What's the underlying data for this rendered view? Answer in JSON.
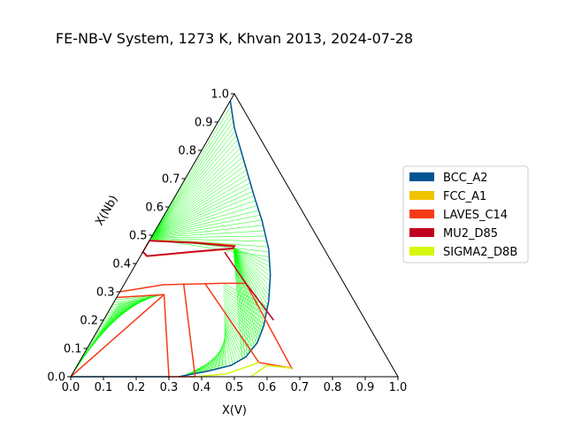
{
  "chart_data": {
    "type": "ternary-phase-diagram",
    "title": "FE-NB-V System, 1273 K, Khvan 2013, 2024-07-28",
    "xlabel": "X(V)",
    "ylabel": "X(Nb)",
    "xlim": [
      0,
      1
    ],
    "ylim": [
      0,
      1
    ],
    "x_ticks": [
      "0.0",
      "0.1",
      "0.2",
      "0.3",
      "0.4",
      "0.5",
      "0.6",
      "0.7",
      "0.8",
      "0.9",
      "1.0"
    ],
    "y_ticks": [
      "0.0",
      "0.1",
      "0.2",
      "0.3",
      "0.4",
      "0.5",
      "0.6",
      "0.7",
      "0.8",
      "0.9",
      "1.0"
    ],
    "legend_position": "right",
    "legend": [
      {
        "name": "BCC_A2",
        "color": "#005493"
      },
      {
        "name": "FCC_A1",
        "color": "#f2c300"
      },
      {
        "name": "LAVES_C14",
        "color": "#f73a16"
      },
      {
        "name": "MU2_D85",
        "color": "#bf0020"
      },
      {
        "name": "SIGMA2_D8B",
        "color": "#d7f70a"
      }
    ],
    "tieline_color": "#00ff00",
    "boundaries": [
      {
        "phase": "BCC_A2",
        "points": [
          [
            0.0,
            0.975
          ],
          [
            0.06,
            0.88
          ],
          [
            0.12,
            0.8
          ],
          [
            0.18,
            0.72
          ],
          [
            0.24,
            0.64
          ],
          [
            0.31,
            0.55
          ],
          [
            0.38,
            0.45
          ],
          [
            0.43,
            0.36
          ],
          [
            0.47,
            0.27
          ],
          [
            0.5,
            0.18
          ],
          [
            0.51,
            0.12
          ],
          [
            0.5,
            0.07
          ],
          [
            0.47,
            0.04
          ],
          [
            0.41,
            0.02
          ],
          [
            0.35,
            0.005
          ],
          [
            0.33,
            0.0
          ]
        ]
      },
      {
        "phase": "BCC_A2",
        "points": [
          [
            0.0,
            0.0
          ],
          [
            0.15,
            0.0
          ],
          [
            0.3,
            0.0
          ]
        ]
      },
      {
        "phase": "LAVES_C14",
        "points": [
          [
            0.0,
            0.482
          ],
          [
            0.15,
            0.474
          ],
          [
            0.27,
            0.463
          ],
          [
            0.27,
            0.452
          ],
          [
            0.15,
            0.44
          ],
          [
            0.02,
            0.425
          ],
          [
            0.0,
            0.44
          ],
          [
            0.0,
            0.482
          ]
        ]
      },
      {
        "phase": "MU2_D85",
        "points": [
          [
            0.0,
            0.48
          ],
          [
            0.15,
            0.472
          ],
          [
            0.268,
            0.46
          ],
          [
            0.268,
            0.454
          ],
          [
            0.15,
            0.442
          ],
          [
            0.02,
            0.427
          ],
          [
            0.0,
            0.442
          ]
        ]
      },
      {
        "phase": "LAVES_C14",
        "points": [
          [
            0.0,
            0.3
          ],
          [
            0.12,
            0.325
          ],
          [
            0.3,
            0.33
          ],
          [
            0.37,
            0.33
          ],
          [
            0.66,
            0.03
          ],
          [
            0.55,
            0.05
          ],
          [
            0.245,
            0.33
          ]
        ]
      },
      {
        "phase": "MU2_D85",
        "points": [
          [
            0.25,
            0.44
          ],
          [
            0.37,
            0.33
          ],
          [
            0.52,
            0.2
          ]
        ]
      },
      {
        "phase": "LAVES_C14",
        "points": [
          [
            0.0,
            0.28
          ],
          [
            0.14,
            0.29
          ],
          [
            0.3,
            0.0
          ],
          [
            0.38,
            0.0
          ],
          [
            0.18,
            0.33
          ]
        ]
      },
      {
        "phase": "SIGMA2_D8B",
        "points": [
          [
            0.38,
            0.0
          ],
          [
            0.47,
            0.01
          ],
          [
            0.55,
            0.05
          ]
        ]
      },
      {
        "phase": "SIGMA2_D8B",
        "points": [
          [
            0.55,
            0.0
          ],
          [
            0.58,
            0.04
          ],
          [
            0.66,
            0.03
          ]
        ]
      },
      {
        "phase": "LAVES_C14",
        "points": [
          [
            0.0,
            0.0
          ],
          [
            0.14,
            0.29
          ]
        ]
      }
    ]
  }
}
